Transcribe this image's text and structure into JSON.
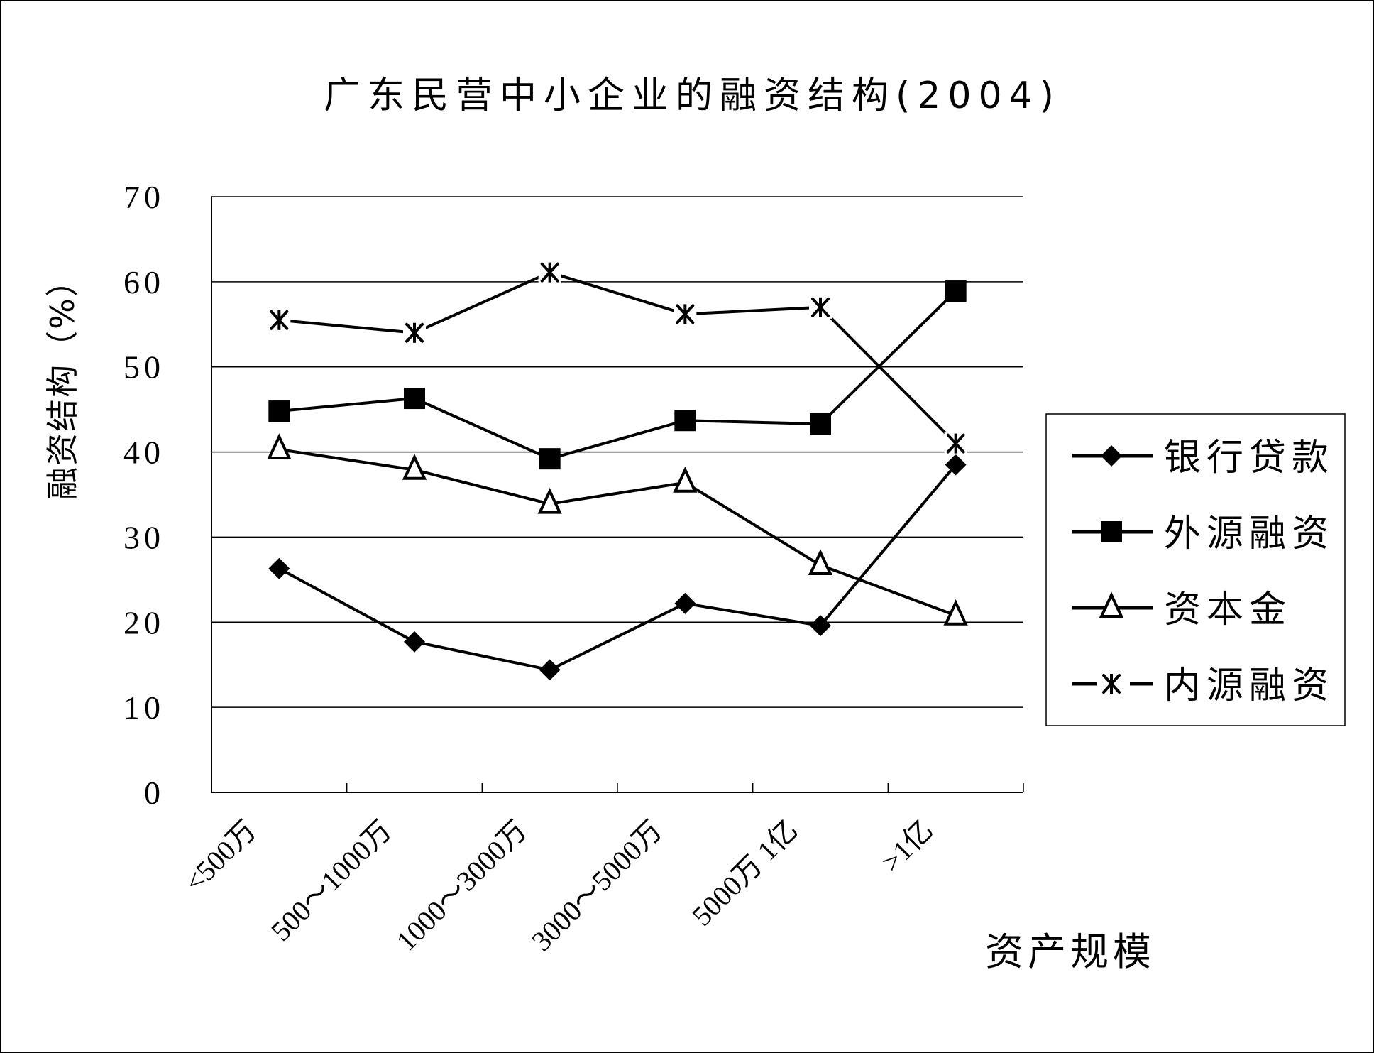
{
  "chart_data": {
    "type": "line",
    "title": "广东民营中小企业的融资结构(2004)",
    "xlabel": "资产规模",
    "ylabel": "融资结构（%）",
    "categories": [
      "<500万",
      "500～1000万",
      "1000～3000万",
      "3000～5000万",
      "5000万 1亿",
      ">1亿"
    ],
    "ylim": [
      0,
      70
    ],
    "yticks": [
      0,
      10,
      20,
      30,
      40,
      50,
      60,
      70
    ],
    "grid": true,
    "legend_position": "right",
    "series": [
      {
        "name": "银行贷款",
        "marker": "diamond",
        "values": [
          26.3,
          17.7,
          14.4,
          22.2,
          19.6,
          38.5
        ]
      },
      {
        "name": "外源融资",
        "marker": "square",
        "values": [
          44.8,
          46.3,
          39.2,
          43.7,
          43.3,
          58.9
        ]
      },
      {
        "name": "资本金",
        "marker": "triangle",
        "values": [
          40.3,
          37.9,
          33.9,
          36.4,
          26.7,
          20.8
        ]
      },
      {
        "name": "内源融资",
        "marker": "asterisk",
        "values": [
          55.5,
          54.0,
          61.1,
          56.2,
          57.0,
          41.0
        ]
      }
    ]
  },
  "colors": {
    "line": "#000000",
    "background": "#ffffff",
    "grid": "#000000"
  }
}
